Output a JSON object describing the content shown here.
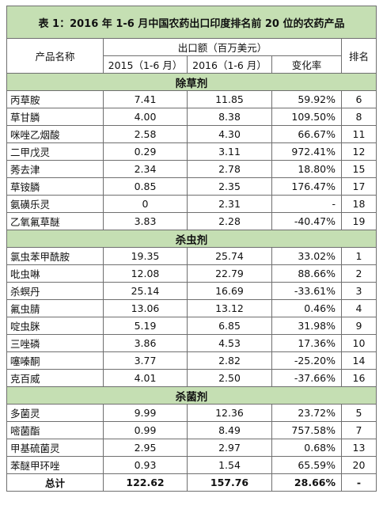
{
  "title": "表 1：2016 年 1-6 月中国农药出口印度排名前 20 位的农药产品",
  "headers": {
    "product_name": "产品名称",
    "export_value": "出口额（百万美元）",
    "year_2015": "2015（1-6 月）",
    "year_2016": "2016（1-6 月）",
    "change_rate": "变化率",
    "rank": "排名"
  },
  "sections": [
    {
      "name": "除草剂",
      "rows": [
        {
          "product": "丙草胺",
          "v2015": "7.41",
          "v2016": "11.85",
          "change": "59.92%",
          "rank": "6"
        },
        {
          "product": "草甘膦",
          "v2015": "4.00",
          "v2016": "8.38",
          "change": "109.50%",
          "rank": "8"
        },
        {
          "product": "咪唑乙烟酸",
          "v2015": "2.58",
          "v2016": "4.30",
          "change": "66.67%",
          "rank": "11"
        },
        {
          "product": "二甲戊灵",
          "v2015": "0.29",
          "v2016": "3.11",
          "change": "972.41%",
          "rank": "12"
        },
        {
          "product": "莠去津",
          "v2015": "2.34",
          "v2016": "2.78",
          "change": "18.80%",
          "rank": "15"
        },
        {
          "product": "草铵膦",
          "v2015": "0.85",
          "v2016": "2.35",
          "change": "176.47%",
          "rank": "17"
        },
        {
          "product": "氨磺乐灵",
          "v2015": "0",
          "v2016": "2.31",
          "change": "-",
          "rank": "18"
        },
        {
          "product": "乙氧氟草醚",
          "v2015": "3.83",
          "v2016": "2.28",
          "change": "-40.47%",
          "rank": "19"
        }
      ]
    },
    {
      "name": "杀虫剂",
      "rows": [
        {
          "product": "氯虫苯甲酰胺",
          "v2015": "19.35",
          "v2016": "25.74",
          "change": "33.02%",
          "rank": "1"
        },
        {
          "product": "吡虫啉",
          "v2015": "12.08",
          "v2016": "22.79",
          "change": "88.66%",
          "rank": "2"
        },
        {
          "product": "杀螟丹",
          "v2015": "25.14",
          "v2016": "16.69",
          "change": "-33.61%",
          "rank": "3"
        },
        {
          "product": "氟虫腈",
          "v2015": "13.06",
          "v2016": "13.12",
          "change": "0.46%",
          "rank": "4"
        },
        {
          "product": "啶虫脒",
          "v2015": "5.19",
          "v2016": "6.85",
          "change": "31.98%",
          "rank": "9"
        },
        {
          "product": "三唑磷",
          "v2015": "3.86",
          "v2016": "4.53",
          "change": "17.36%",
          "rank": "10"
        },
        {
          "product": "噻嗪酮",
          "v2015": "3.77",
          "v2016": "2.82",
          "change": "-25.20%",
          "rank": "14"
        },
        {
          "product": "克百威",
          "v2015": "4.01",
          "v2016": "2.50",
          "change": "-37.66%",
          "rank": "16"
        }
      ]
    },
    {
      "name": "杀菌剂",
      "rows": [
        {
          "product": "多菌灵",
          "v2015": "9.99",
          "v2016": "12.36",
          "change": "23.72%",
          "rank": "5"
        },
        {
          "product": "嘧菌酯",
          "v2015": "0.99",
          "v2016": "8.49",
          "change": "757.58%",
          "rank": "7"
        },
        {
          "product": "甲基硫菌灵",
          "v2015": "2.95",
          "v2016": "2.97",
          "change": "0.68%",
          "rank": "13"
        },
        {
          "product": "苯醚甲环唑",
          "v2015": "0.93",
          "v2016": "1.54",
          "change": "65.59%",
          "rank": "20"
        }
      ]
    }
  ],
  "total": {
    "label": "总计",
    "v2015": "122.62",
    "v2016": "157.76",
    "change": "28.66%",
    "rank": "-"
  }
}
